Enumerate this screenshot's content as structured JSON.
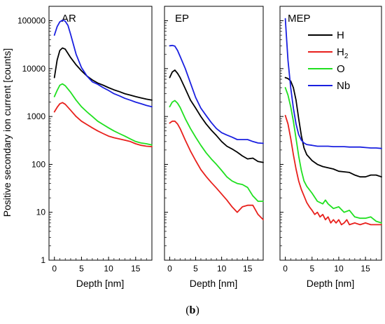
{
  "caption": {
    "open": "(",
    "letter": "b",
    "close": ")"
  },
  "colors": {
    "H": "#000000",
    "H2": "#e8201c",
    "O": "#20e020",
    "Nb": "#1a20e0"
  },
  "chart_data": [
    {
      "type": "line",
      "title": "AR",
      "xlabel": "Depth [nm]",
      "ylabel": "Positive secondary ion current [counts]",
      "xlim": [
        -1,
        18
      ],
      "ylim": [
        1,
        200000
      ],
      "yscale": "log",
      "xticks": [
        "0",
        "5",
        "10",
        "15"
      ],
      "yticks": [
        "1",
        "10",
        "100",
        "1000",
        "10000",
        "100000"
      ],
      "series": [
        {
          "key": "H",
          "x": [
            0,
            0.5,
            1,
            1.5,
            2,
            3,
            4,
            5,
            6,
            7,
            8,
            9,
            10,
            11,
            12,
            13,
            14,
            15,
            16,
            17,
            18
          ],
          "y": [
            6500,
            15000,
            24000,
            27000,
            25500,
            17000,
            12000,
            9000,
            7000,
            5800,
            5000,
            4500,
            4000,
            3600,
            3300,
            3000,
            2800,
            2600,
            2450,
            2300,
            2200
          ]
        },
        {
          "key": "H2",
          "x": [
            0,
            0.5,
            1,
            1.5,
            2,
            3,
            4,
            5,
            6,
            7,
            8,
            9,
            10,
            11,
            12,
            13,
            14,
            15,
            16,
            17,
            18
          ],
          "y": [
            1250,
            1550,
            1850,
            1950,
            1800,
            1350,
            1000,
            800,
            680,
            580,
            500,
            440,
            390,
            360,
            340,
            320,
            300,
            270,
            250,
            240,
            235
          ]
        },
        {
          "key": "O",
          "x": [
            0,
            0.5,
            1,
            1.5,
            2,
            3,
            4,
            5,
            6,
            7,
            8,
            9,
            10,
            11,
            12,
            13,
            14,
            15,
            16,
            17,
            18
          ],
          "y": [
            2600,
            3500,
            4500,
            4800,
            4400,
            3200,
            2200,
            1600,
            1250,
            1000,
            800,
            680,
            580,
            500,
            440,
            390,
            340,
            300,
            280,
            270,
            255
          ]
        },
        {
          "key": "Nb",
          "x": [
            0,
            0.5,
            1,
            1.5,
            2,
            2.5,
            3,
            4,
            5,
            6,
            7,
            8,
            9,
            10,
            11,
            12,
            13,
            14,
            15,
            16,
            17,
            18
          ],
          "y": [
            50000,
            75000,
            95000,
            103000,
            98000,
            80000,
            52000,
            20000,
            10500,
            7000,
            5300,
            4700,
            4000,
            3500,
            3000,
            2700,
            2400,
            2200,
            2000,
            1850,
            1700,
            1600
          ]
        }
      ]
    },
    {
      "type": "line",
      "title": "EP",
      "xlabel": "Depth [nm]",
      "xlim": [
        -1,
        18
      ],
      "ylim": [
        1,
        200000
      ],
      "yscale": "log",
      "xticks": [
        "0",
        "5",
        "10",
        "15"
      ],
      "series": [
        {
          "key": "H",
          "x": [
            0,
            0.5,
            1,
            1.5,
            2,
            3,
            4,
            5,
            6,
            7,
            8,
            9,
            10,
            11,
            12,
            13,
            14,
            15,
            16,
            17,
            18
          ],
          "y": [
            6500,
            8500,
            9300,
            8000,
            6500,
            3800,
            2200,
            1500,
            1000,
            700,
            520,
            400,
            300,
            240,
            210,
            180,
            150,
            130,
            135,
            115,
            110
          ]
        },
        {
          "key": "H2",
          "x": [
            0,
            0.5,
            1,
            1.5,
            2,
            3,
            4,
            5,
            6,
            7,
            8,
            9,
            10,
            11,
            12,
            13,
            14,
            15,
            16,
            17,
            18
          ],
          "y": [
            730,
            800,
            800,
            700,
            560,
            320,
            190,
            120,
            78,
            56,
            42,
            32,
            24,
            18,
            13,
            10,
            13,
            14,
            14,
            9,
            7
          ]
        },
        {
          "key": "O",
          "x": [
            0,
            0.5,
            1,
            1.5,
            2,
            3,
            4,
            5,
            6,
            7,
            8,
            9,
            10,
            11,
            12,
            13,
            14,
            15,
            16,
            17,
            18
          ],
          "y": [
            1600,
            2000,
            2150,
            1900,
            1550,
            900,
            560,
            370,
            250,
            175,
            130,
            100,
            75,
            55,
            45,
            40,
            38,
            33,
            22,
            17,
            17
          ]
        },
        {
          "key": "Nb",
          "x": [
            0,
            0.5,
            1,
            1.5,
            2,
            3,
            4,
            5,
            6,
            7,
            8,
            9,
            10,
            11,
            12,
            13,
            14,
            15,
            16,
            17,
            18
          ],
          "y": [
            30000,
            30500,
            29500,
            24000,
            18000,
            10000,
            5000,
            2500,
            1500,
            1050,
            750,
            560,
            460,
            410,
            370,
            330,
            330,
            330,
            300,
            280,
            275
          ]
        }
      ]
    },
    {
      "type": "line",
      "title": "MEP",
      "xlabel": "Depth [nm]",
      "xlim": [
        -1,
        18
      ],
      "ylim": [
        1,
        200000
      ],
      "yscale": "log",
      "xticks": [
        "0",
        "5",
        "10",
        "15"
      ],
      "legend": {
        "position": "top-right",
        "entries": [
          {
            "key": "H",
            "label": "H",
            "sub": ""
          },
          {
            "key": "H2",
            "label": "H",
            "sub": "2"
          },
          {
            "key": "O",
            "label": "O",
            "sub": ""
          },
          {
            "key": "Nb",
            "label": "Nb",
            "sub": ""
          }
        ]
      },
      "series": [
        {
          "key": "H",
          "x": [
            0,
            0.5,
            1,
            1.5,
            2,
            2.5,
            3,
            3.5,
            4,
            5,
            6,
            7,
            8,
            9,
            10,
            11,
            12,
            13,
            14,
            15,
            16,
            17,
            18
          ],
          "y": [
            6500,
            6200,
            5500,
            4000,
            2200,
            900,
            400,
            220,
            160,
            120,
            100,
            90,
            85,
            80,
            72,
            70,
            68,
            60,
            55,
            55,
            60,
            60,
            55
          ]
        },
        {
          "key": "H2",
          "x": [
            0,
            0.5,
            1,
            1.5,
            2,
            2.5,
            3,
            3.5,
            4,
            4.5,
            5,
            5.5,
            6,
            6.5,
            7,
            7.5,
            8,
            8.5,
            9,
            9.5,
            10,
            10.5,
            11,
            11.5,
            12,
            13,
            14,
            15,
            16,
            17,
            18
          ],
          "y": [
            1050,
            700,
            350,
            160,
            80,
            45,
            30,
            22,
            16,
            13,
            11,
            9,
            10,
            8,
            9,
            7,
            8,
            6,
            7,
            6,
            7,
            5.5,
            6,
            7,
            5.5,
            6,
            5.5,
            6,
            5.5,
            5.5,
            5.5
          ]
        },
        {
          "key": "O",
          "x": [
            0,
            0.5,
            1,
            1.5,
            2,
            2.5,
            3,
            3.5,
            4,
            5,
            6,
            7,
            7.5,
            8,
            9,
            10,
            11,
            12,
            13,
            14,
            15,
            16,
            17,
            18
          ],
          "y": [
            4000,
            2800,
            1600,
            800,
            350,
            150,
            75,
            45,
            35,
            25,
            17,
            15,
            18,
            15,
            12,
            13,
            10,
            11,
            8,
            7.5,
            7.5,
            8,
            6.5,
            6
          ]
        },
        {
          "key": "Nb",
          "x": [
            0,
            0.25,
            0.5,
            1,
            1.5,
            2,
            2.5,
            3,
            3.5,
            4,
            5,
            6,
            7,
            8,
            9,
            10,
            11,
            12,
            13,
            14,
            15,
            16,
            17,
            18
          ],
          "y": [
            110000,
            40000,
            15000,
            4000,
            1500,
            700,
            420,
            320,
            280,
            260,
            250,
            240,
            240,
            240,
            235,
            235,
            235,
            230,
            230,
            230,
            225,
            220,
            220,
            215
          ]
        }
      ]
    }
  ]
}
